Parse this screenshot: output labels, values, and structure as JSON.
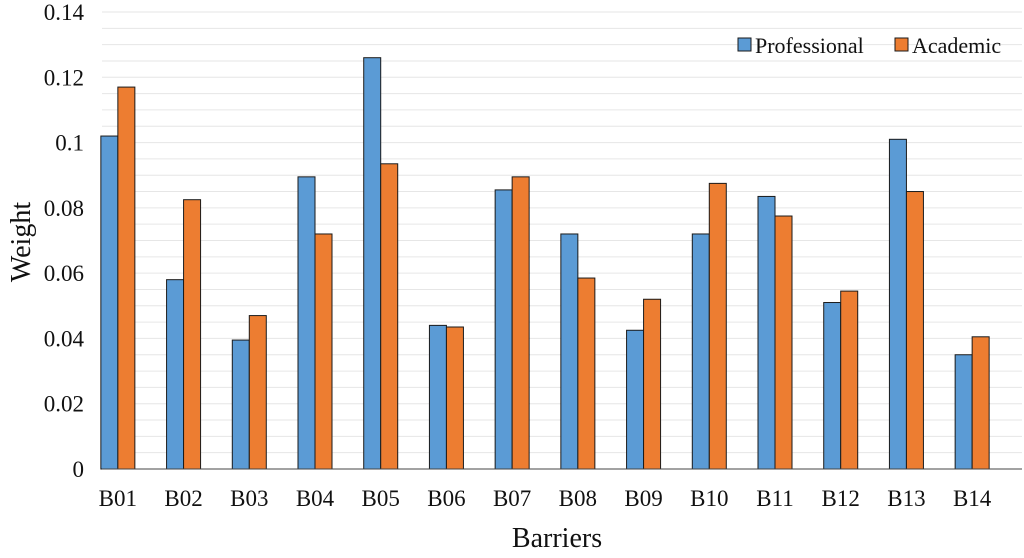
{
  "chart_data": {
    "type": "bar",
    "title": "",
    "xlabel": "Barriers",
    "ylabel": "Weight",
    "ylim": [
      0,
      0.14
    ],
    "yticks": [
      0,
      0.02,
      0.04,
      0.06,
      0.08,
      0.1,
      0.12,
      0.14
    ],
    "ytick_labels": [
      "0",
      "0.02",
      "0.04",
      "0.06",
      "0.08",
      "0.1",
      "0.12",
      "0.14"
    ],
    "grid": true,
    "legend_position": "top-right",
    "categories": [
      "B01",
      "B02",
      "B03",
      "B04",
      "B05",
      "B06",
      "B07",
      "B08",
      "B09",
      "B10",
      "B11",
      "B12",
      "B13",
      "B14"
    ],
    "series": [
      {
        "name": "Professional",
        "color": "#5b9bd5",
        "values": [
          0.102,
          0.058,
          0.0395,
          0.0895,
          0.126,
          0.044,
          0.0855,
          0.072,
          0.0425,
          0.072,
          0.0835,
          0.051,
          0.101,
          0.035
        ]
      },
      {
        "name": "Academic",
        "color": "#ed7d31",
        "values": [
          0.117,
          0.0825,
          0.047,
          0.072,
          0.0935,
          0.0435,
          0.0895,
          0.0585,
          0.052,
          0.0875,
          0.0775,
          0.0545,
          0.085,
          0.0405
        ]
      }
    ]
  }
}
